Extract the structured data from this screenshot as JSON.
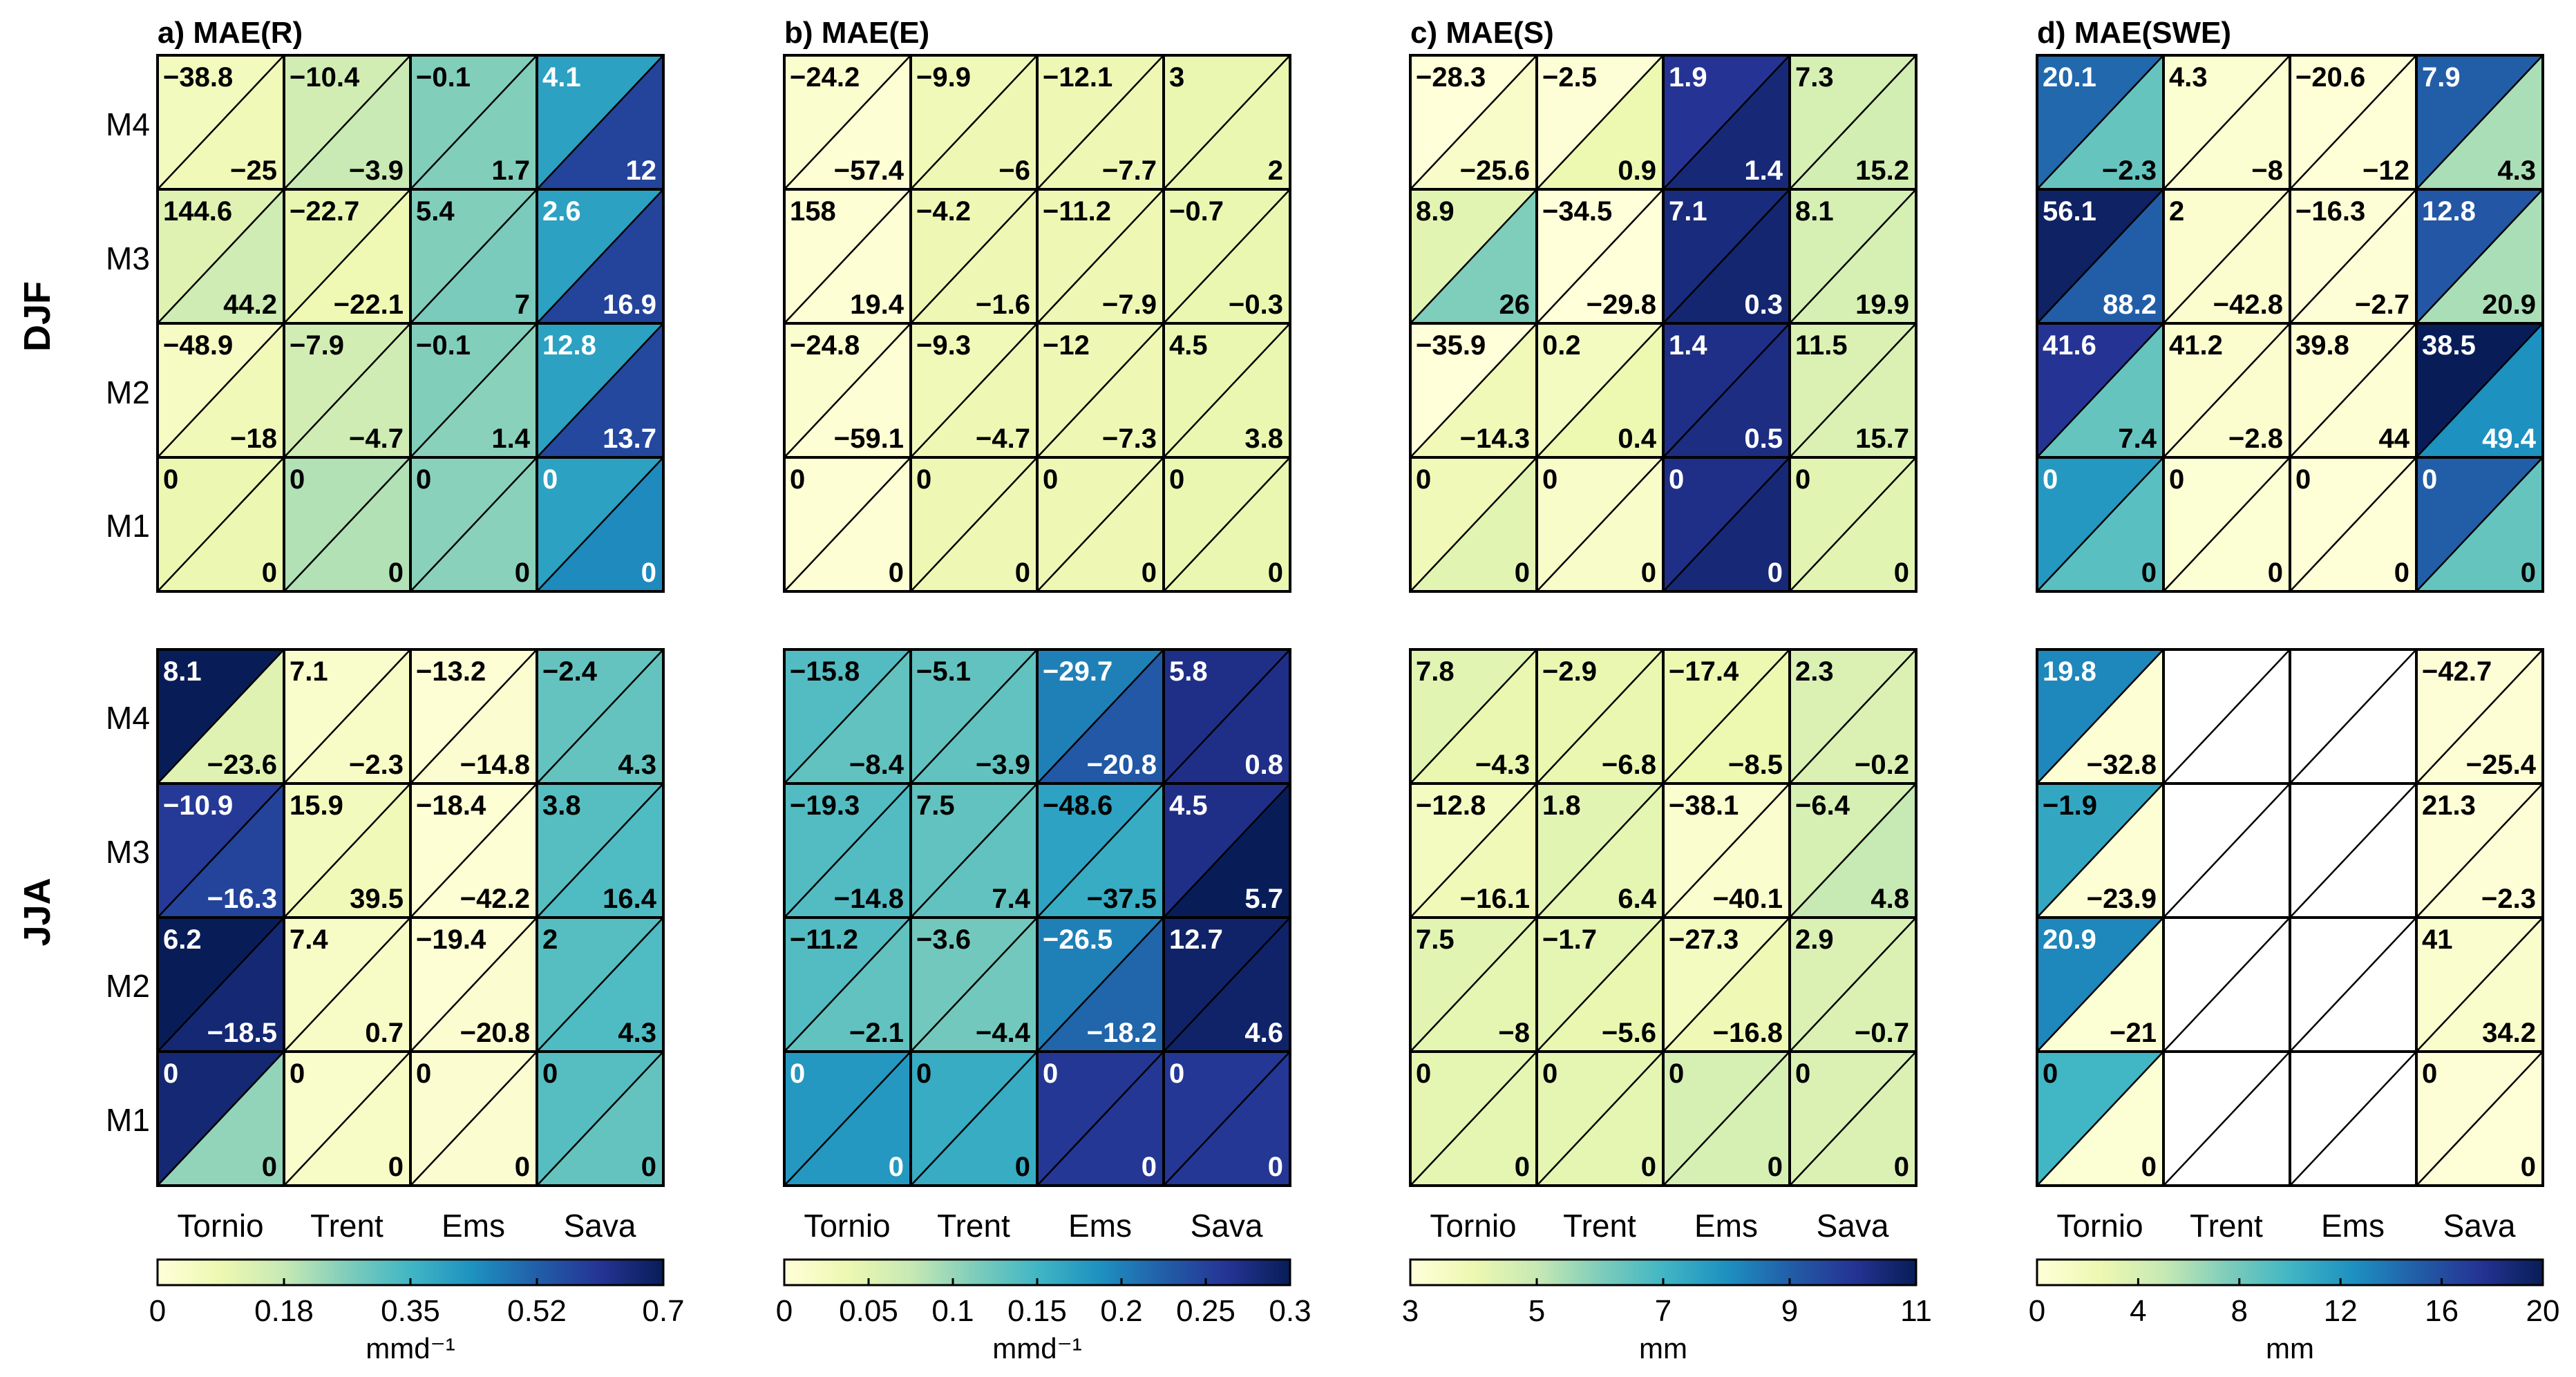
{
  "chart_data": [
    {
      "type": "heatmap",
      "title": "a) MAE(R)",
      "rows": [
        "M4",
        "M3",
        "M2",
        "M1"
      ],
      "categories": [
        "Tornio",
        "Trent",
        "Ems",
        "Sava"
      ],
      "colorbar": {
        "ticks": [
          "0",
          "0.18",
          "0.35",
          "0.52",
          "0.7"
        ],
        "range": [
          0,
          0.7
        ],
        "label": "mmd⁻¹"
      },
      "seasons": [
        {
          "name": "DJF",
          "upper_labels": [
            [
              "−38.8",
              "−10.4",
              "−0.1",
              "4.1"
            ],
            [
              "144.6",
              "−22.7",
              "5.4",
              "2.6"
            ],
            [
              "−48.9",
              "−7.9",
              "−0.1",
              "12.8"
            ],
            [
              "0",
              "0",
              "0",
              "0"
            ]
          ],
          "lower_labels": [
            [
              "−25",
              "−3.9",
              "1.7",
              "12"
            ],
            [
              "44.2",
              "−22.1",
              "7",
              "16.9"
            ],
            [
              "−18",
              "−4.7",
              "1.4",
              "13.7"
            ],
            [
              "0",
              "0",
              "0",
              "0"
            ]
          ],
          "upper_values": [
            [
              0.06,
              0.15,
              0.26,
              0.4
            ],
            [
              0.12,
              0.1,
              0.26,
              0.4
            ],
            [
              0.05,
              0.15,
              0.26,
              0.4
            ],
            [
              0.09,
              0.2,
              0.25,
              0.4
            ]
          ],
          "lower_values": [
            [
              0.07,
              0.17,
              0.26,
              0.58
            ],
            [
              0.16,
              0.08,
              0.27,
              0.58
            ],
            [
              0.07,
              0.16,
              0.25,
              0.57
            ],
            [
              0.09,
              0.2,
              0.25,
              0.45
            ]
          ]
        },
        {
          "name": "JJA",
          "upper_labels": [
            [
              "8.1",
              "7.1",
              "−13.2",
              "−2.4"
            ],
            [
              "−10.9",
              "15.9",
              "−18.4",
              "3.8"
            ],
            [
              "6.2",
              "7.4",
              "−19.4",
              "2"
            ],
            [
              "0",
              "0",
              "0",
              "0"
            ]
          ],
          "lower_labels": [
            [
              "−23.6",
              "−2.3",
              "−14.8",
              "4.3"
            ],
            [
              "−16.3",
              "39.5",
              "−42.2",
              "16.4"
            ],
            [
              "−18.5",
              "0.7",
              "−20.8",
              "4.3"
            ],
            [
              "0",
              "0",
              "0",
              "0"
            ]
          ],
          "upper_values": [
            [
              0.7,
              0.03,
              0.01,
              0.3
            ],
            [
              0.6,
              0.06,
              0.01,
              0.32
            ],
            [
              0.7,
              0.04,
              0.01,
              0.32
            ],
            [
              0.66,
              0.03,
              0.02,
              0.32
            ]
          ],
          "lower_values": [
            [
              0.12,
              0.04,
              0.02,
              0.3
            ],
            [
              0.58,
              0.07,
              0.01,
              0.33
            ],
            [
              0.66,
              0.04,
              0.02,
              0.33
            ],
            [
              0.24,
              0.04,
              0.02,
              0.3
            ]
          ]
        }
      ]
    },
    {
      "type": "heatmap",
      "title": "b) MAE(E)",
      "rows": [
        "M4",
        "M3",
        "M2",
        "M1"
      ],
      "categories": [
        "Tornio",
        "Trent",
        "Ems",
        "Sava"
      ],
      "colorbar": {
        "ticks": [
          "0",
          "0.05",
          "0.1",
          "0.15",
          "0.2",
          "0.25",
          "0.3"
        ],
        "range": [
          0,
          0.3
        ],
        "label": "mmd⁻¹"
      },
      "seasons": [
        {
          "name": "DJF",
          "upper_labels": [
            [
              "−24.2",
              "−9.9",
              "−12.1",
              "3"
            ],
            [
              "158",
              "−4.2",
              "−11.2",
              "−0.7"
            ],
            [
              "−24.8",
              "−9.3",
              "−12",
              "4.5"
            ],
            [
              "0",
              "0",
              "0",
              "0"
            ]
          ],
          "lower_labels": [
            [
              "−57.4",
              "−6",
              "−7.7",
              "2"
            ],
            [
              "19.4",
              "−1.6",
              "−7.9",
              "−0.3"
            ],
            [
              "−59.1",
              "−4.7",
              "−7.3",
              "3.8"
            ],
            [
              "0",
              "0",
              "0",
              "0"
            ]
          ],
          "upper_values": [
            [
              0.01,
              0.03,
              0.035,
              0.04
            ],
            [
              0.005,
              0.035,
              0.035,
              0.04
            ],
            [
              0.01,
              0.03,
              0.035,
              0.04
            ],
            [
              0.005,
              0.035,
              0.035,
              0.04
            ]
          ],
          "lower_values": [
            [
              0.005,
              0.035,
              0.035,
              0.04
            ],
            [
              0.005,
              0.035,
              0.035,
              0.04
            ],
            [
              0.005,
              0.035,
              0.035,
              0.04
            ],
            [
              0.005,
              0.035,
              0.035,
              0.04
            ]
          ]
        },
        {
          "name": "JJA",
          "upper_labels": [
            [
              "−15.8",
              "−5.1",
              "−29.7",
              "5.8"
            ],
            [
              "−19.3",
              "7.5",
              "−48.6",
              "4.5"
            ],
            [
              "−11.2",
              "−3.6",
              "−26.5",
              "12.7"
            ],
            [
              "0",
              "0",
              "0",
              "0"
            ]
          ],
          "lower_labels": [
            [
              "−8.4",
              "−3.9",
              "−20.8",
              "0.8"
            ],
            [
              "−14.8",
              "7.4",
              "−37.5",
              "5.7"
            ],
            [
              "−2.1",
              "−4.4",
              "−18.2",
              "4.6"
            ],
            [
              "0",
              "0",
              "0",
              "0"
            ]
          ],
          "upper_values": [
            [
              0.14,
              0.13,
              0.2,
              0.27
            ],
            [
              0.14,
              0.13,
              0.17,
              0.27
            ],
            [
              0.14,
              0.12,
              0.2,
              0.29
            ],
            [
              0.18,
              0.16,
              0.26,
              0.26
            ]
          ],
          "lower_values": [
            [
              0.13,
              0.13,
              0.23,
              0.27
            ],
            [
              0.14,
              0.13,
              0.16,
              0.3
            ],
            [
              0.13,
              0.12,
              0.22,
              0.29
            ],
            [
              0.18,
              0.16,
              0.26,
              0.26
            ]
          ]
        }
      ]
    },
    {
      "type": "heatmap",
      "title": "c) MAE(S)",
      "rows": [
        "M4",
        "M3",
        "M2",
        "M1"
      ],
      "categories": [
        "Tornio",
        "Trent",
        "Ems",
        "Sava"
      ],
      "colorbar": {
        "ticks": [
          "3",
          "5",
          "7",
          "9",
          "11"
        ],
        "range": [
          3,
          11
        ],
        "label": "mm"
      },
      "seasons": [
        {
          "name": "DJF",
          "upper_labels": [
            [
              "−28.3",
              "−2.5",
              "1.9",
              "7.3"
            ],
            [
              "8.9",
              "−34.5",
              "7.1",
              "8.1"
            ],
            [
              "−35.9",
              "0.2",
              "1.4",
              "11.5"
            ],
            [
              "0",
              "0",
              "0",
              "0"
            ]
          ],
          "lower_labels": [
            [
              "−25.6",
              "0.9",
              "1.4",
              "15.2"
            ],
            [
              "26",
              "−29.8",
              "0.3",
              "19.9"
            ],
            [
              "−14.3",
              "0.4",
              "0.5",
              "15.7"
            ],
            [
              "0",
              "0",
              "0",
              "0"
            ]
          ],
          "upper_values": [
            [
              3.0,
              3.1,
              10.0,
              4.6
            ],
            [
              4.3,
              3.0,
              10.4,
              4.6
            ],
            [
              3.0,
              3.6,
              10.2,
              4.5
            ],
            [
              3.8,
              3.4,
              10.2,
              4.3
            ]
          ],
          "lower_values": [
            [
              3.4,
              4.0,
              10.5,
              4.7
            ],
            [
              6.0,
              3.0,
              10.6,
              4.6
            ],
            [
              3.8,
              4.0,
              10.3,
              4.5
            ],
            [
              4.3,
              3.4,
              10.5,
              4.3
            ]
          ]
        },
        {
          "name": "JJA",
          "upper_labels": [
            [
              "7.8",
              "−2.9",
              "−17.4",
              "2.3"
            ],
            [
              "−12.8",
              "1.8",
              "−38.1",
              "−6.4"
            ],
            [
              "7.5",
              "−1.7",
              "−27.3",
              "2.9"
            ],
            [
              "0",
              "0",
              "0",
              "0"
            ]
          ],
          "lower_labels": [
            [
              "−4.3",
              "−6.8",
              "−8.5",
              "−0.2"
            ],
            [
              "−16.1",
              "6.4",
              "−40.1",
              "4.8"
            ],
            [
              "−8",
              "−5.6",
              "−16.8",
              "−0.7"
            ],
            [
              "0",
              "0",
              "0",
              "0"
            ]
          ],
          "upper_values": [
            [
              4.3,
              4.1,
              4.0,
              4.5
            ],
            [
              3.6,
              4.3,
              3.3,
              4.6
            ],
            [
              4.3,
              4.2,
              3.6,
              4.5
            ],
            [
              4.2,
              4.2,
              4.6,
              4.5
            ]
          ],
          "lower_values": [
            [
              4.1,
              4.1,
              4.0,
              4.5
            ],
            [
              3.8,
              4.2,
              3.3,
              5.0
            ],
            [
              4.2,
              4.1,
              3.9,
              4.5
            ],
            [
              4.2,
              4.2,
              4.6,
              4.5
            ]
          ]
        }
      ]
    },
    {
      "type": "heatmap",
      "title": "d) MAE(SWE)",
      "rows": [
        "M4",
        "M3",
        "M2",
        "M1"
      ],
      "categories": [
        "Tornio",
        "Trent",
        "Ems",
        "Sava"
      ],
      "colorbar": {
        "ticks": [
          "0",
          "4",
          "8",
          "12",
          "16",
          "20"
        ],
        "range": [
          0,
          20
        ],
        "label": "mm"
      },
      "seasons": [
        {
          "name": "DJF",
          "upper_labels": [
            [
              "20.1",
              "4.3",
              "−20.6",
              "7.9"
            ],
            [
              "56.1",
              "2",
              "−16.3",
              "12.8"
            ],
            [
              "41.6",
              "41.2",
              "39.8",
              "38.5"
            ],
            [
              "0",
              "0",
              "0",
              "0"
            ]
          ],
          "lower_labels": [
            [
              "−2.3",
              "−8",
              "−12",
              "4.3"
            ],
            [
              "88.2",
              "−42.8",
              "−2.7",
              "20.9"
            ],
            [
              "7.4",
              "−2.8",
              "44",
              "49.4"
            ],
            [
              "0",
              "0",
              "0",
              "0"
            ]
          ],
          "upper_values": [
            [
              14.5,
              0.5,
              0.1,
              15.0
            ],
            [
              19.5,
              0.6,
              0.2,
              15.5
            ],
            [
              17.5,
              0.6,
              0.3,
              20.0
            ],
            [
              12.0,
              0.4,
              0.1,
              15.0
            ]
          ],
          "lower_values": [
            [
              8.5,
              0.5,
              0.1,
              6.0
            ],
            [
              15.0,
              0.6,
              0.2,
              6.0
            ],
            [
              8.5,
              0.6,
              0.3,
              12.5
            ],
            [
              9.0,
              0.4,
              0.1,
              8.5
            ]
          ]
        },
        {
          "name": "JJA",
          "upper_labels": [
            [
              "19.8",
              "",
              "",
              "−42.7"
            ],
            [
              "−1.9",
              "",
              "",
              "21.3"
            ],
            [
              "20.9",
              "",
              "",
              "41"
            ],
            [
              "0",
              "",
              "",
              "0"
            ]
          ],
          "lower_labels": [
            [
              "−32.8",
              "",
              "",
              "−25.4"
            ],
            [
              "−23.9",
              "",
              "",
              "−2.3"
            ],
            [
              "−21",
              "",
              "",
              "34.2"
            ],
            [
              "0",
              "",
              "",
              "0"
            ]
          ],
          "upper_values": [
            [
              13.0,
              null,
              null,
              0.2
            ],
            [
              11.0,
              null,
              null,
              0.2
            ],
            [
              13.0,
              null,
              null,
              0.7
            ],
            [
              10.0,
              null,
              null,
              0.2
            ]
          ],
          "lower_values": [
            [
              0.3,
              null,
              null,
              0.3
            ],
            [
              0.3,
              null,
              null,
              0.2
            ],
            [
              0.4,
              null,
              null,
              0.8
            ],
            [
              0.4,
              null,
              null,
              0.1
            ]
          ]
        }
      ]
    }
  ]
}
